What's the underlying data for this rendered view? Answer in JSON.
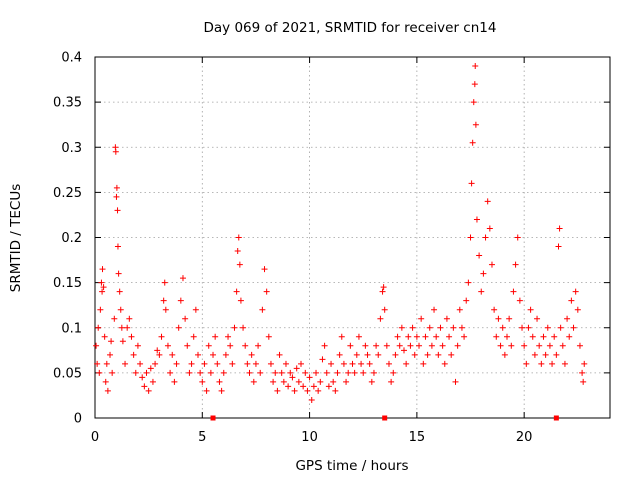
{
  "chart_data": {
    "type": "scatter",
    "title": "Day 069 of 2021, SRMTID for receiver cn14",
    "xlabel": "GPS time / hours",
    "ylabel": "SRMTID / TECUs",
    "xlim": [
      0,
      24
    ],
    "ylim": [
      0,
      0.4
    ],
    "xticks": [
      0,
      5,
      10,
      15,
      20
    ],
    "xtick_labels": [
      "0",
      "5",
      "10",
      "15",
      "20"
    ],
    "yticks": [
      0,
      0.05,
      0.1,
      0.15,
      0.2,
      0.25,
      0.3,
      0.35,
      0.4
    ],
    "ytick_labels": [
      "0",
      "0.05",
      "0.1",
      "0.15",
      "0.2",
      "0.25",
      "0.3",
      "0.35",
      "0.4"
    ],
    "grid": true,
    "marker": "plus",
    "marker_color": "#ff0000",
    "baseline_markers_x": [
      5.5,
      13.5,
      21.5
    ],
    "series": [
      {
        "name": "SRMTID",
        "points": [
          [
            0.05,
            0.08
          ],
          [
            0.1,
            0.06
          ],
          [
            0.15,
            0.1
          ],
          [
            0.2,
            0.05
          ],
          [
            0.25,
            0.12
          ],
          [
            0.3,
            0.15
          ],
          [
            0.33,
            0.14
          ],
          [
            0.35,
            0.165
          ],
          [
            0.4,
            0.145
          ],
          [
            0.45,
            0.09
          ],
          [
            0.5,
            0.04
          ],
          [
            0.55,
            0.06
          ],
          [
            0.6,
            0.03
          ],
          [
            0.7,
            0.07
          ],
          [
            0.75,
            0.085
          ],
          [
            0.8,
            0.05
          ],
          [
            0.9,
            0.11
          ],
          [
            0.95,
            0.3
          ],
          [
            0.97,
            0.295
          ],
          [
            1.0,
            0.245
          ],
          [
            1.02,
            0.255
          ],
          [
            1.05,
            0.23
          ],
          [
            1.07,
            0.19
          ],
          [
            1.1,
            0.16
          ],
          [
            1.15,
            0.14
          ],
          [
            1.2,
            0.12
          ],
          [
            1.25,
            0.1
          ],
          [
            1.3,
            0.085
          ],
          [
            1.4,
            0.06
          ],
          [
            1.5,
            0.1
          ],
          [
            1.6,
            0.11
          ],
          [
            1.7,
            0.09
          ],
          [
            1.8,
            0.07
          ],
          [
            1.9,
            0.05
          ],
          [
            2.0,
            0.08
          ],
          [
            2.1,
            0.06
          ],
          [
            2.2,
            0.045
          ],
          [
            2.3,
            0.035
          ],
          [
            2.4,
            0.05
          ],
          [
            2.5,
            0.03
          ],
          [
            2.6,
            0.055
          ],
          [
            2.7,
            0.04
          ],
          [
            2.8,
            0.06
          ],
          [
            2.9,
            0.075
          ],
          [
            3.0,
            0.07
          ],
          [
            3.1,
            0.09
          ],
          [
            3.2,
            0.13
          ],
          [
            3.25,
            0.15
          ],
          [
            3.3,
            0.12
          ],
          [
            3.4,
            0.08
          ],
          [
            3.5,
            0.05
          ],
          [
            3.6,
            0.07
          ],
          [
            3.7,
            0.04
          ],
          [
            3.8,
            0.06
          ],
          [
            3.9,
            0.1
          ],
          [
            4.0,
            0.13
          ],
          [
            4.1,
            0.155
          ],
          [
            4.2,
            0.11
          ],
          [
            4.3,
            0.08
          ],
          [
            4.4,
            0.05
          ],
          [
            4.5,
            0.06
          ],
          [
            4.6,
            0.09
          ],
          [
            4.7,
            0.12
          ],
          [
            4.8,
            0.07
          ],
          [
            4.9,
            0.05
          ],
          [
            5.0,
            0.04
          ],
          [
            5.1,
            0.06
          ],
          [
            5.2,
            0.03
          ],
          [
            5.3,
            0.08
          ],
          [
            5.4,
            0.05
          ],
          [
            5.5,
            0.07
          ],
          [
            5.6,
            0.09
          ],
          [
            5.7,
            0.06
          ],
          [
            5.8,
            0.04
          ],
          [
            5.9,
            0.03
          ],
          [
            6.0,
            0.05
          ],
          [
            6.1,
            0.07
          ],
          [
            6.2,
            0.09
          ],
          [
            6.3,
            0.08
          ],
          [
            6.4,
            0.06
          ],
          [
            6.5,
            0.1
          ],
          [
            6.6,
            0.14
          ],
          [
            6.65,
            0.185
          ],
          [
            6.7,
            0.2
          ],
          [
            6.75,
            0.17
          ],
          [
            6.8,
            0.13
          ],
          [
            6.9,
            0.1
          ],
          [
            7.0,
            0.08
          ],
          [
            7.1,
            0.06
          ],
          [
            7.2,
            0.05
          ],
          [
            7.3,
            0.07
          ],
          [
            7.4,
            0.04
          ],
          [
            7.5,
            0.06
          ],
          [
            7.6,
            0.08
          ],
          [
            7.7,
            0.05
          ],
          [
            7.8,
            0.12
          ],
          [
            7.9,
            0.165
          ],
          [
            8.0,
            0.14
          ],
          [
            8.1,
            0.09
          ],
          [
            8.2,
            0.06
          ],
          [
            8.3,
            0.04
          ],
          [
            8.4,
            0.05
          ],
          [
            8.5,
            0.03
          ],
          [
            8.6,
            0.07
          ],
          [
            8.7,
            0.05
          ],
          [
            8.8,
            0.04
          ],
          [
            8.9,
            0.06
          ],
          [
            9.0,
            0.035
          ],
          [
            9.1,
            0.05
          ],
          [
            9.2,
            0.045
          ],
          [
            9.3,
            0.03
          ],
          [
            9.4,
            0.055
          ],
          [
            9.5,
            0.04
          ],
          [
            9.6,
            0.06
          ],
          [
            9.7,
            0.035
          ],
          [
            9.8,
            0.05
          ],
          [
            9.9,
            0.03
          ],
          [
            10.0,
            0.045
          ],
          [
            10.1,
            0.02
          ],
          [
            10.2,
            0.035
          ],
          [
            10.3,
            0.05
          ],
          [
            10.4,
            0.03
          ],
          [
            10.5,
            0.04
          ],
          [
            10.6,
            0.065
          ],
          [
            10.7,
            0.08
          ],
          [
            10.8,
            0.05
          ],
          [
            10.9,
            0.035
          ],
          [
            11.0,
            0.06
          ],
          [
            11.1,
            0.04
          ],
          [
            11.2,
            0.03
          ],
          [
            11.3,
            0.05
          ],
          [
            11.4,
            0.07
          ],
          [
            11.5,
            0.09
          ],
          [
            11.6,
            0.06
          ],
          [
            11.7,
            0.04
          ],
          [
            11.8,
            0.05
          ],
          [
            11.9,
            0.08
          ],
          [
            12.0,
            0.06
          ],
          [
            12.1,
            0.05
          ],
          [
            12.2,
            0.07
          ],
          [
            12.3,
            0.09
          ],
          [
            12.4,
            0.06
          ],
          [
            12.5,
            0.05
          ],
          [
            12.6,
            0.08
          ],
          [
            12.7,
            0.07
          ],
          [
            12.8,
            0.06
          ],
          [
            12.9,
            0.04
          ],
          [
            13.0,
            0.05
          ],
          [
            13.1,
            0.08
          ],
          [
            13.2,
            0.07
          ],
          [
            13.3,
            0.11
          ],
          [
            13.4,
            0.14
          ],
          [
            13.45,
            0.145
          ],
          [
            13.5,
            0.12
          ],
          [
            13.6,
            0.08
          ],
          [
            13.7,
            0.06
          ],
          [
            13.8,
            0.04
          ],
          [
            13.9,
            0.05
          ],
          [
            14.0,
            0.07
          ],
          [
            14.1,
            0.09
          ],
          [
            14.2,
            0.08
          ],
          [
            14.3,
            0.1
          ],
          [
            14.4,
            0.075
          ],
          [
            14.5,
            0.06
          ],
          [
            14.6,
            0.09
          ],
          [
            14.7,
            0.08
          ],
          [
            14.8,
            0.1
          ],
          [
            14.9,
            0.07
          ],
          [
            15.0,
            0.09
          ],
          [
            15.1,
            0.08
          ],
          [
            15.2,
            0.11
          ],
          [
            15.3,
            0.06
          ],
          [
            15.4,
            0.09
          ],
          [
            15.5,
            0.07
          ],
          [
            15.6,
            0.1
          ],
          [
            15.7,
            0.08
          ],
          [
            15.8,
            0.12
          ],
          [
            15.9,
            0.09
          ],
          [
            16.0,
            0.07
          ],
          [
            16.1,
            0.1
          ],
          [
            16.2,
            0.08
          ],
          [
            16.3,
            0.06
          ],
          [
            16.4,
            0.11
          ],
          [
            16.5,
            0.09
          ],
          [
            16.6,
            0.07
          ],
          [
            16.7,
            0.1
          ],
          [
            16.8,
            0.04
          ],
          [
            16.9,
            0.08
          ],
          [
            17.0,
            0.12
          ],
          [
            17.1,
            0.1
          ],
          [
            17.2,
            0.09
          ],
          [
            17.3,
            0.13
          ],
          [
            17.4,
            0.15
          ],
          [
            17.5,
            0.2
          ],
          [
            17.55,
            0.26
          ],
          [
            17.6,
            0.305
          ],
          [
            17.65,
            0.35
          ],
          [
            17.7,
            0.37
          ],
          [
            17.72,
            0.39
          ],
          [
            17.75,
            0.325
          ],
          [
            17.8,
            0.22
          ],
          [
            17.9,
            0.18
          ],
          [
            18.0,
            0.14
          ],
          [
            18.1,
            0.16
          ],
          [
            18.2,
            0.2
          ],
          [
            18.3,
            0.24
          ],
          [
            18.4,
            0.21
          ],
          [
            18.5,
            0.17
          ],
          [
            18.6,
            0.12
          ],
          [
            18.7,
            0.09
          ],
          [
            18.8,
            0.11
          ],
          [
            18.9,
            0.08
          ],
          [
            19.0,
            0.1
          ],
          [
            19.1,
            0.07
          ],
          [
            19.2,
            0.09
          ],
          [
            19.3,
            0.11
          ],
          [
            19.4,
            0.08
          ],
          [
            19.5,
            0.14
          ],
          [
            19.6,
            0.17
          ],
          [
            19.7,
            0.2
          ],
          [
            19.8,
            0.13
          ],
          [
            19.9,
            0.1
          ],
          [
            20.0,
            0.08
          ],
          [
            20.1,
            0.06
          ],
          [
            20.2,
            0.1
          ],
          [
            20.3,
            0.12
          ],
          [
            20.4,
            0.09
          ],
          [
            20.5,
            0.07
          ],
          [
            20.6,
            0.11
          ],
          [
            20.7,
            0.08
          ],
          [
            20.8,
            0.06
          ],
          [
            20.9,
            0.09
          ],
          [
            21.0,
            0.07
          ],
          [
            21.1,
            0.1
          ],
          [
            21.2,
            0.08
          ],
          [
            21.3,
            0.06
          ],
          [
            21.4,
            0.09
          ],
          [
            21.5,
            0.07
          ],
          [
            21.6,
            0.19
          ],
          [
            21.65,
            0.21
          ],
          [
            21.7,
            0.1
          ],
          [
            21.8,
            0.08
          ],
          [
            21.9,
            0.06
          ],
          [
            22.0,
            0.11
          ],
          [
            22.1,
            0.09
          ],
          [
            22.2,
            0.13
          ],
          [
            22.3,
            0.1
          ],
          [
            22.4,
            0.14
          ],
          [
            22.5,
            0.12
          ],
          [
            22.6,
            0.08
          ],
          [
            22.7,
            0.05
          ],
          [
            22.75,
            0.04
          ],
          [
            22.8,
            0.06
          ]
        ]
      }
    ]
  }
}
